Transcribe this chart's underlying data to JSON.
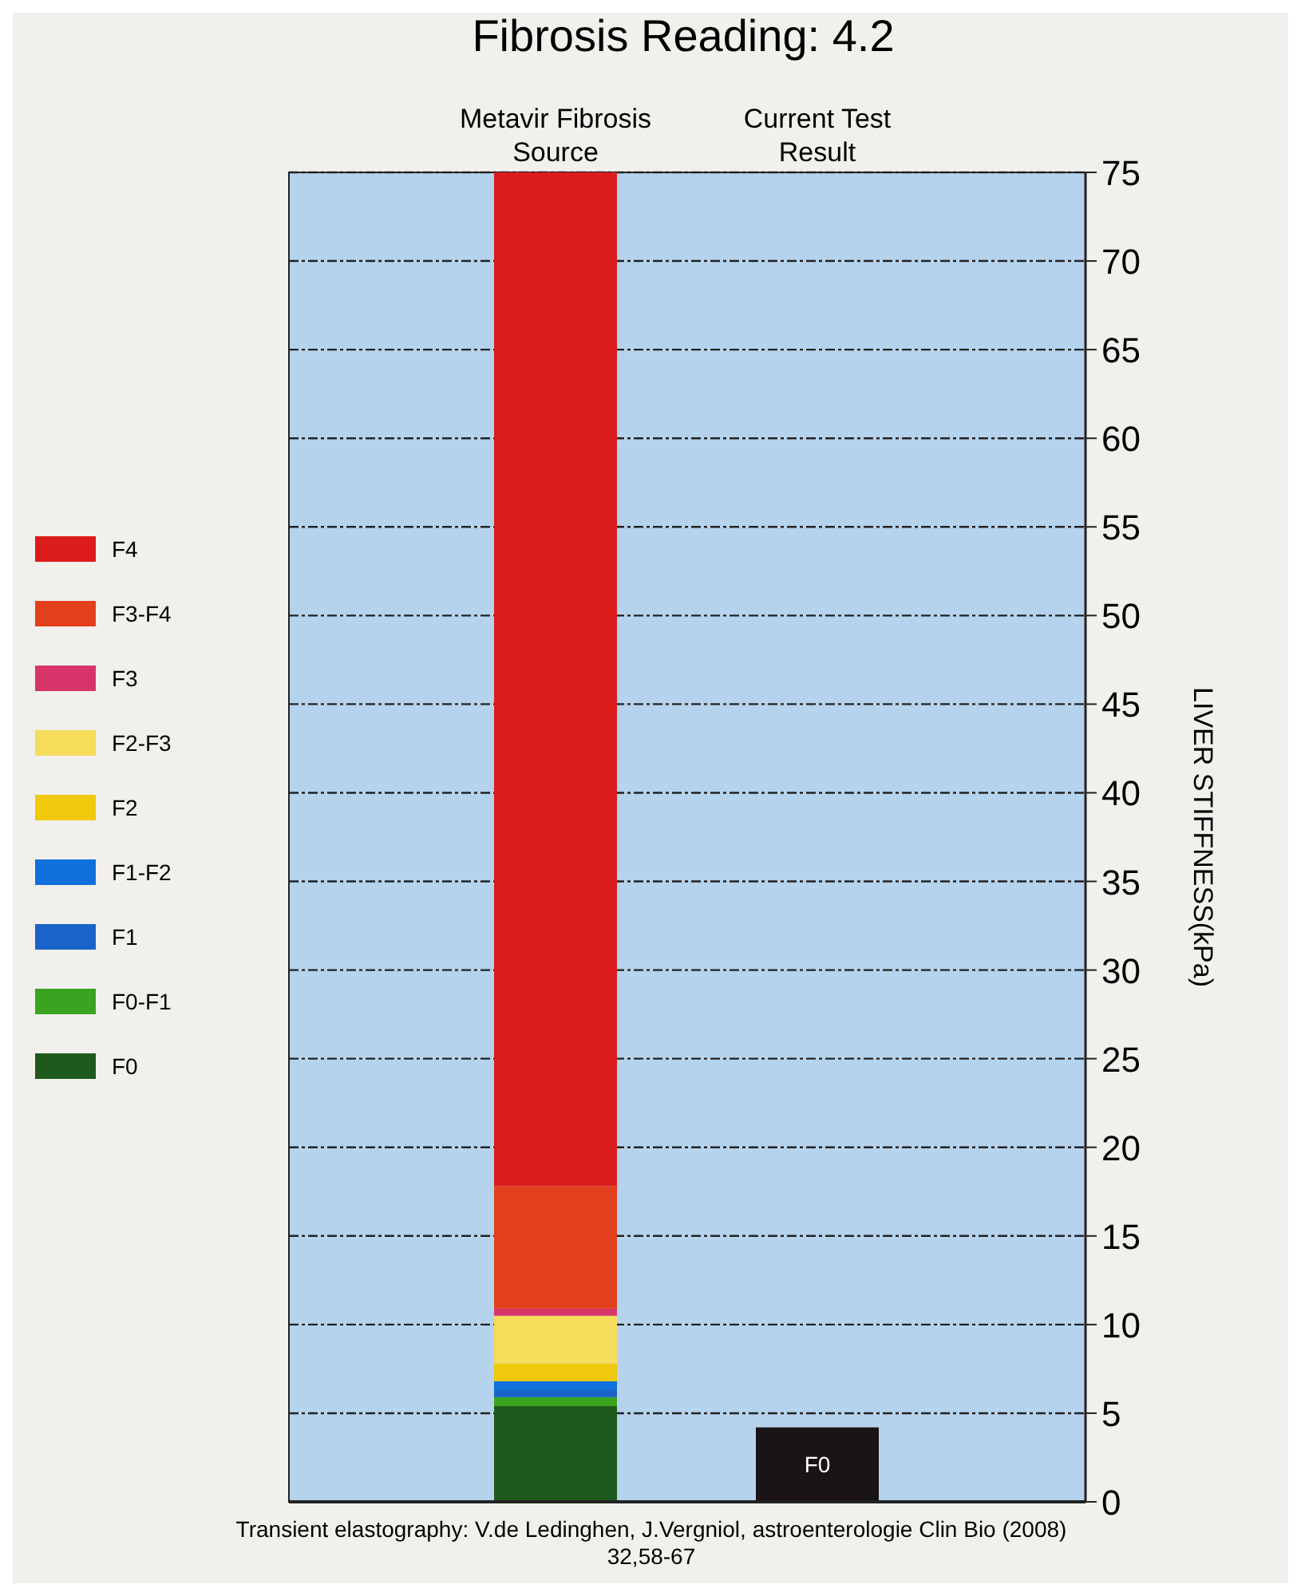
{
  "chart_data": {
    "type": "bar",
    "stacked": true,
    "title": "Fibrosis Reading: 4.2",
    "categories": [
      "Metavir Fibrosis Source",
      "Current Test Result"
    ],
    "ylabel": "LIVER STIFFNESS(kPa)",
    "ylim": [
      0,
      75
    ],
    "yticks": [
      0,
      5,
      10,
      15,
      20,
      25,
      30,
      35,
      40,
      45,
      50,
      55,
      60,
      65,
      70,
      75
    ],
    "grid": "y",
    "legend": "left",
    "line_style": "dashed",
    "series": [
      {
        "name": "F0",
        "color": "#1e5a1c",
        "values": [
          5.4,
          null
        ]
      },
      {
        "name": "F0-F1",
        "color": "#3aa420",
        "values": [
          0.5,
          null
        ]
      },
      {
        "name": "F1",
        "color": "#1a63c8",
        "values": [
          0.4,
          null
        ]
      },
      {
        "name": "F1-F2",
        "color": "#1070dc",
        "values": [
          0.5,
          null
        ]
      },
      {
        "name": "F2",
        "color": "#f0c80c",
        "values": [
          1.0,
          null
        ]
      },
      {
        "name": "F2-F3",
        "color": "#f5dc5a",
        "values": [
          2.7,
          null
        ]
      },
      {
        "name": "F3",
        "color": "#d8346a",
        "values": [
          0.4,
          null
        ]
      },
      {
        "name": "F3-F4",
        "color": "#e2401c",
        "values": [
          6.9,
          null
        ]
      },
      {
        "name": "F4",
        "color": "#dc1c1c",
        "values": [
          57.2,
          null
        ]
      },
      {
        "color": "#1a1416",
        "values": [
          null,
          4.2
        ],
        "value_labels": [
          null,
          "F0"
        ]
      }
    ],
    "annotations": [
      "Transient elastography: V.de Ledinghen, J.Vergniol, astroenterologie Clin Bio (2008) 32,58-67"
    ]
  }
}
